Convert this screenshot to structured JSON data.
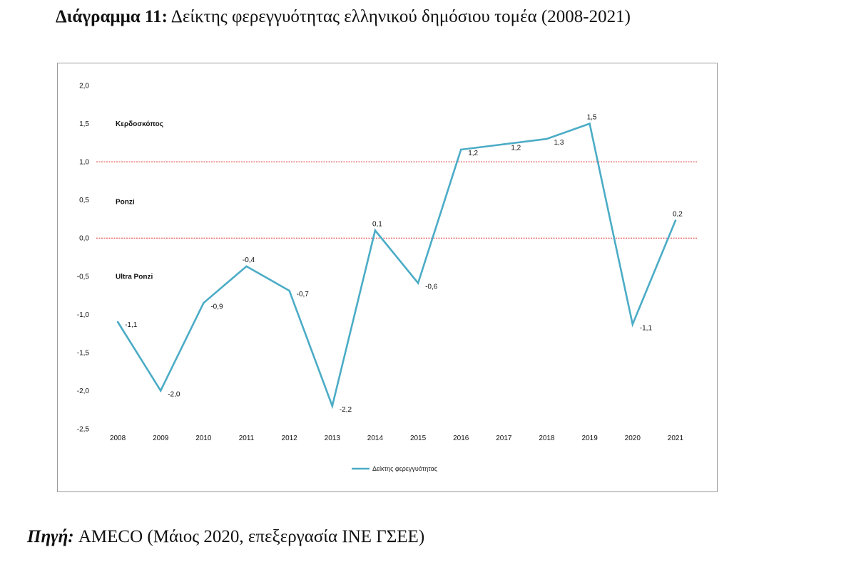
{
  "header": {
    "title_prefix": "Διάγραμμα 11:",
    "title_text": "Δείκτης φερεγγυότητας ελληνικού δημόσιου τομέα (2008-2021)"
  },
  "footer": {
    "source_prefix": "Πηγή",
    "source_colon": ":",
    "source_text": "AMECO (Μάιος 2020, επεξεργασία ΙΝΕ ΓΣΕΕ)"
  },
  "chart_data": {
    "type": "line",
    "title": "",
    "xlabel": "",
    "ylabel": "",
    "categories": [
      "2008",
      "2009",
      "2010",
      "2011",
      "2012",
      "2013",
      "2014",
      "2015",
      "2016",
      "2017",
      "2018",
      "2019",
      "2020",
      "2021"
    ],
    "series": [
      {
        "name": "Δείκτης φερεγγυότητας",
        "color": "#4bacc6",
        "values": [
          -1.1,
          -2.0,
          -0.85,
          -0.37,
          -0.69,
          -2.2,
          0.1,
          -0.59,
          1.16,
          1.23,
          1.3,
          1.5,
          -1.13,
          0.23
        ],
        "labels": [
          "-1,1",
          "-2,0",
          "-0,9",
          "-0,4",
          "-0,7",
          "-2,2",
          "0,1",
          "-0,6",
          "1,2",
          "1,2",
          "1,3",
          "1,5",
          "-1,1",
          "0,2"
        ]
      }
    ],
    "ylim": [
      -2.5,
      2.0
    ],
    "yticks": [
      2.0,
      1.5,
      1.0,
      0.5,
      0.0,
      -0.5,
      -1.0,
      -1.5,
      -2.0,
      -2.5
    ],
    "ytick_labels": [
      "2,0",
      "1,5",
      "1,0",
      "0,5",
      "0,0",
      "-0,5",
      "-1,0",
      "-1,5",
      "-2,0",
      "-2,5"
    ],
    "reference_lines": [
      {
        "y": 1.0,
        "color": "#e03030",
        "style": "dotted"
      },
      {
        "y": 0.0,
        "color": "#e03030",
        "style": "dotted"
      }
    ],
    "zone_labels": [
      {
        "text": "Κερδοσκόπος",
        "y": 1.5
      },
      {
        "text": "Ponzi",
        "y": 0.48
      },
      {
        "text": "Ultra Ponzi",
        "y": -0.5
      }
    ],
    "grid": false,
    "legend_position": "bottom"
  }
}
